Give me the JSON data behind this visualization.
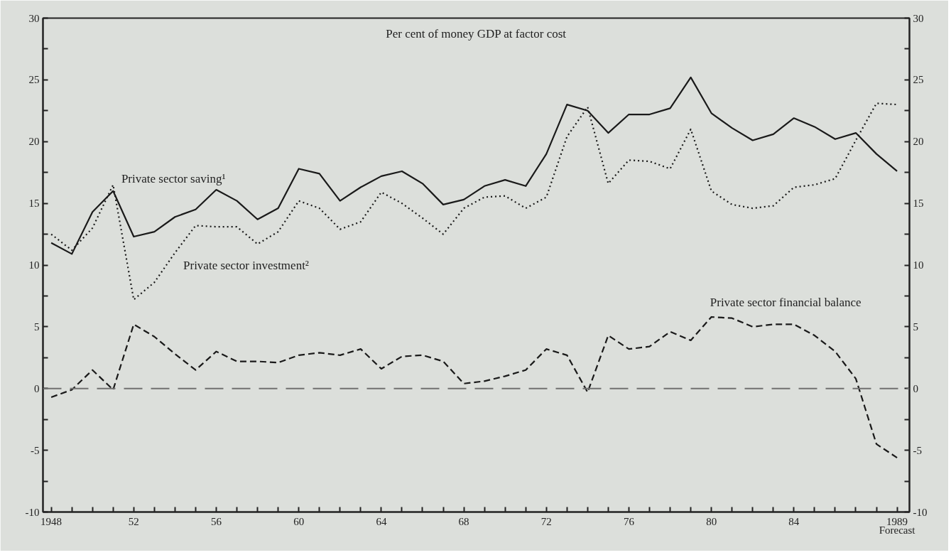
{
  "chart_data": {
    "type": "line",
    "title": "Per cent of money GDP at factor cost",
    "x": [
      1948,
      1949,
      1950,
      1951,
      1952,
      1953,
      1954,
      1955,
      1956,
      1957,
      1958,
      1959,
      1960,
      1961,
      1962,
      1963,
      1964,
      1965,
      1966,
      1967,
      1968,
      1969,
      1970,
      1971,
      1972,
      1973,
      1974,
      1975,
      1976,
      1977,
      1978,
      1979,
      1980,
      1981,
      1982,
      1983,
      1984,
      1985,
      1986,
      1987,
      1988,
      1989
    ],
    "series": [
      {
        "name": "Private sector saving¹",
        "color": "#1a1a1a",
        "line_style": "solid",
        "values": [
          11.8,
          10.9,
          14.3,
          16.0,
          12.3,
          12.7,
          13.9,
          14.5,
          16.1,
          15.2,
          13.7,
          14.6,
          17.8,
          17.4,
          15.2,
          16.3,
          17.2,
          17.6,
          16.6,
          14.9,
          15.3,
          16.4,
          16.9,
          16.4,
          19.0,
          23.0,
          22.5,
          20.7,
          22.2,
          22.2,
          22.7,
          25.2,
          22.3,
          21.1,
          20.1,
          20.6,
          21.9,
          21.2,
          20.2,
          20.7,
          19.0,
          17.6
        ]
      },
      {
        "name": "Private sector investment²",
        "color": "#1a1a1a",
        "line_style": "dotted",
        "values": [
          12.5,
          11.2,
          13.0,
          16.5,
          7.2,
          8.6,
          11.0,
          13.2,
          13.1,
          13.1,
          11.7,
          12.7,
          15.2,
          14.6,
          12.9,
          13.5,
          15.9,
          15.0,
          13.8,
          12.5,
          14.6,
          15.5,
          15.6,
          14.6,
          15.5,
          20.4,
          22.8,
          16.6,
          18.5,
          18.4,
          17.8,
          21.0,
          16.0,
          14.9,
          14.6,
          14.8,
          16.3,
          16.5,
          17.0,
          20.1,
          23.1,
          23.0
        ]
      },
      {
        "name": "Private sector financial balance",
        "color": "#1a1a1a",
        "line_style": "dashed",
        "values": [
          -0.7,
          -0.1,
          1.5,
          -0.1,
          5.2,
          4.2,
          2.8,
          1.5,
          3.0,
          2.2,
          2.2,
          2.1,
          2.7,
          2.9,
          2.7,
          3.2,
          1.6,
          2.6,
          2.7,
          2.2,
          0.4,
          0.6,
          1.0,
          1.5,
          3.2,
          2.7,
          -0.3,
          4.3,
          3.2,
          3.4,
          4.6,
          3.9,
          5.8,
          5.7,
          5.0,
          5.2,
          5.2,
          4.3,
          3.0,
          0.8,
          -4.5,
          -5.6
        ]
      }
    ],
    "ref_lines": [
      {
        "axis": "y",
        "value": 0,
        "color": "#707070",
        "line_style": "dashed"
      }
    ],
    "xlim": [
      1947.6,
      1989.6
    ],
    "xticks": [
      1948,
      {
        "value": 1949,
        "label": null
      },
      {
        "value": 1950,
        "label": null
      },
      {
        "value": 1951,
        "label": null
      },
      {
        "value": 1952,
        "label": "52"
      },
      {
        "value": 1953,
        "label": null
      },
      {
        "value": 1954,
        "label": null
      },
      {
        "value": 1955,
        "label": null
      },
      {
        "value": 1956,
        "label": "56"
      },
      {
        "value": 1957,
        "label": null
      },
      {
        "value": 1958,
        "label": null
      },
      {
        "value": 1959,
        "label": null
      },
      {
        "value": 1960,
        "label": "60"
      },
      {
        "value": 1961,
        "label": null
      },
      {
        "value": 1962,
        "label": null
      },
      {
        "value": 1963,
        "label": null
      },
      {
        "value": 1964,
        "label": "64"
      },
      {
        "value": 1965,
        "label": null
      },
      {
        "value": 1966,
        "label": null
      },
      {
        "value": 1967,
        "label": null
      },
      {
        "value": 1968,
        "label": "68"
      },
      {
        "value": 1969,
        "label": null
      },
      {
        "value": 1970,
        "label": null
      },
      {
        "value": 1971,
        "label": null
      },
      {
        "value": 1972,
        "label": "72"
      },
      {
        "value": 1973,
        "label": null
      },
      {
        "value": 1974,
        "label": null
      },
      {
        "value": 1975,
        "label": null
      },
      {
        "value": 1976,
        "label": "76"
      },
      {
        "value": 1977,
        "label": null
      },
      {
        "value": 1978,
        "label": null
      },
      {
        "value": 1979,
        "label": null
      },
      {
        "value": 1980,
        "label": "80"
      },
      {
        "value": 1981,
        "label": null
      },
      {
        "value": 1982,
        "label": null
      },
      {
        "value": 1983,
        "label": null
      },
      {
        "value": 1984,
        "label": "84"
      },
      {
        "value": 1985,
        "label": null
      },
      {
        "value": 1986,
        "label": null
      },
      {
        "value": 1987,
        "label": null
      },
      {
        "value": 1988,
        "label": null
      },
      {
        "value": 1989,
        "label": "1989\nForecast"
      }
    ],
    "ylim": [
      -10,
      30
    ],
    "yticks": [
      -10,
      {
        "value": -7.5,
        "label": null
      },
      -5,
      {
        "value": -2.5,
        "label": null
      },
      0,
      {
        "value": 2.5,
        "label": null
      },
      5,
      {
        "value": 7.5,
        "label": null
      },
      10,
      {
        "value": 12.5,
        "label": null
      },
      15,
      {
        "value": 17.5,
        "label": null
      },
      20,
      {
        "value": 22.5,
        "label": null
      },
      25,
      {
        "value": 27.5,
        "label": null
      },
      30
    ],
    "y2lim": [
      -10,
      30
    ],
    "y2ticks": [
      -10,
      {
        "value": -7.5,
        "label": null
      },
      -5,
      {
        "value": -2.5,
        "label": null
      },
      0,
      {
        "value": 2.5,
        "label": null
      },
      5,
      {
        "value": 7.5,
        "label": null
      },
      10,
      {
        "value": 12.5,
        "label": null
      },
      15,
      {
        "value": 17.5,
        "label": null
      },
      20,
      {
        "value": 22.5,
        "label": null
      },
      25,
      {
        "value": 27.5,
        "label": null
      },
      30
    ],
    "grid": false,
    "legend": false,
    "marker": "none"
  }
}
